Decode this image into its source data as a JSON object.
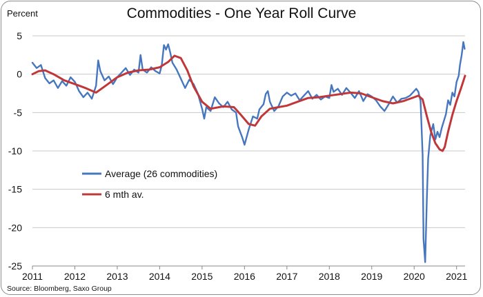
{
  "title": "Commodities - One Year Roll Curve",
  "source": "Source: Bloomberg, Saxo Group",
  "colors": {
    "average": "#4677be",
    "six_month": "#c0373a",
    "grid": "#c9c9c9",
    "axis": "#888888"
  },
  "chart_data": {
    "type": "line",
    "title": "Commodities - One Year Roll Curve",
    "ylabel": "Percent",
    "xlabel": "",
    "xlim": [
      2011.0,
      2021.2
    ],
    "ylim": [
      -25,
      5
    ],
    "x_ticks": [
      "2011",
      "2012",
      "2013",
      "2014",
      "2015",
      "2016",
      "2017",
      "2018",
      "2019",
      "2020",
      "2021"
    ],
    "y_ticks": [
      5,
      0,
      -5,
      -10,
      -15,
      -20,
      -25
    ],
    "grid": "horizontal",
    "legend_position": "middle-left",
    "series": [
      {
        "name": "Average (26 commodities)",
        "color": "#4677be",
        "points": [
          [
            2011.0,
            1.5
          ],
          [
            2011.1,
            0.8
          ],
          [
            2011.2,
            1.2
          ],
          [
            2011.3,
            -0.5
          ],
          [
            2011.4,
            -1.2
          ],
          [
            2011.5,
            -0.8
          ],
          [
            2011.6,
            -1.8
          ],
          [
            2011.7,
            -0.9
          ],
          [
            2011.8,
            -1.5
          ],
          [
            2011.9,
            -0.4
          ],
          [
            2012.0,
            -1.0
          ],
          [
            2012.1,
            -2.2
          ],
          [
            2012.2,
            -3.0
          ],
          [
            2012.3,
            -2.4
          ],
          [
            2012.4,
            -3.2
          ],
          [
            2012.5,
            -1.5
          ],
          [
            2012.55,
            1.8
          ],
          [
            2012.6,
            0.4
          ],
          [
            2012.7,
            -0.8
          ],
          [
            2012.8,
            -0.3
          ],
          [
            2012.9,
            -1.3
          ],
          [
            2013.0,
            -0.4
          ],
          [
            2013.1,
            0.2
          ],
          [
            2013.2,
            0.8
          ],
          [
            2013.3,
            -0.1
          ],
          [
            2013.4,
            0.6
          ],
          [
            2013.5,
            0.2
          ],
          [
            2013.55,
            2.5
          ],
          [
            2013.6,
            0.6
          ],
          [
            2013.7,
            0.2
          ],
          [
            2013.8,
            0.9
          ],
          [
            2013.9,
            0.4
          ],
          [
            2014.0,
            0.1
          ],
          [
            2014.05,
            1.2
          ],
          [
            2014.1,
            3.8
          ],
          [
            2014.15,
            3.2
          ],
          [
            2014.2,
            3.9
          ],
          [
            2014.25,
            2.8
          ],
          [
            2014.3,
            1.5
          ],
          [
            2014.4,
            0.6
          ],
          [
            2014.5,
            -0.6
          ],
          [
            2014.6,
            -1.8
          ],
          [
            2014.7,
            -0.7
          ],
          [
            2014.8,
            -1.3
          ],
          [
            2014.9,
            -2.5
          ],
          [
            2015.0,
            -4.5
          ],
          [
            2015.05,
            -5.8
          ],
          [
            2015.1,
            -4.3
          ],
          [
            2015.2,
            -4.8
          ],
          [
            2015.3,
            -3.0
          ],
          [
            2015.4,
            -3.8
          ],
          [
            2015.5,
            -4.3
          ],
          [
            2015.6,
            -3.6
          ],
          [
            2015.7,
            -4.6
          ],
          [
            2015.8,
            -5.0
          ],
          [
            2015.85,
            -6.8
          ],
          [
            2015.95,
            -8.3
          ],
          [
            2016.0,
            -9.2
          ],
          [
            2016.1,
            -7.2
          ],
          [
            2016.2,
            -5.5
          ],
          [
            2016.3,
            -5.8
          ],
          [
            2016.35,
            -4.6
          ],
          [
            2016.45,
            -3.9
          ],
          [
            2016.5,
            -2.6
          ],
          [
            2016.55,
            -2.2
          ],
          [
            2016.6,
            -3.6
          ],
          [
            2016.7,
            -4.8
          ],
          [
            2016.8,
            -4.2
          ],
          [
            2016.9,
            -2.9
          ],
          [
            2017.0,
            -2.4
          ],
          [
            2017.1,
            -2.8
          ],
          [
            2017.2,
            -2.5
          ],
          [
            2017.3,
            -3.4
          ],
          [
            2017.4,
            -2.8
          ],
          [
            2017.5,
            -2.2
          ],
          [
            2017.6,
            -3.2
          ],
          [
            2017.7,
            -2.7
          ],
          [
            2017.8,
            -3.3
          ],
          [
            2017.9,
            -2.9
          ],
          [
            2018.0,
            -3.1
          ],
          [
            2018.05,
            -1.4
          ],
          [
            2018.1,
            -2.3
          ],
          [
            2018.2,
            -1.9
          ],
          [
            2018.3,
            -2.7
          ],
          [
            2018.4,
            -1.8
          ],
          [
            2018.5,
            -2.4
          ],
          [
            2018.6,
            -3.1
          ],
          [
            2018.7,
            -2.2
          ],
          [
            2018.8,
            -3.5
          ],
          [
            2018.9,
            -2.6
          ],
          [
            2019.0,
            -2.9
          ],
          [
            2019.1,
            -3.4
          ],
          [
            2019.2,
            -4.2
          ],
          [
            2019.3,
            -4.8
          ],
          [
            2019.4,
            -3.9
          ],
          [
            2019.5,
            -2.9
          ],
          [
            2019.6,
            -3.7
          ],
          [
            2019.7,
            -3.2
          ],
          [
            2019.8,
            -3.1
          ],
          [
            2019.9,
            -2.8
          ],
          [
            2020.0,
            -2.2
          ],
          [
            2020.05,
            -1.9
          ],
          [
            2020.1,
            -2.3
          ],
          [
            2020.15,
            -3.5
          ],
          [
            2020.2,
            -10.5
          ],
          [
            2020.22,
            -21.5
          ],
          [
            2020.26,
            -24.5
          ],
          [
            2020.3,
            -16.0
          ],
          [
            2020.33,
            -11.0
          ],
          [
            2020.38,
            -8.0
          ],
          [
            2020.45,
            -6.5
          ],
          [
            2020.5,
            -8.5
          ],
          [
            2020.55,
            -7.5
          ],
          [
            2020.6,
            -8.2
          ],
          [
            2020.65,
            -7.0
          ],
          [
            2020.75,
            -5.2
          ],
          [
            2020.8,
            -3.4
          ],
          [
            2020.85,
            -4.0
          ],
          [
            2020.9,
            -2.4
          ],
          [
            2020.95,
            -2.9
          ],
          [
            2021.0,
            -1.0
          ],
          [
            2021.05,
            -0.2
          ],
          [
            2021.08,
            1.2
          ],
          [
            2021.12,
            2.5
          ],
          [
            2021.16,
            4.2
          ],
          [
            2021.19,
            3.3
          ]
        ]
      },
      {
        "name": "6 mth av.",
        "color": "#c0373a",
        "points": [
          [
            2011.0,
            0.0
          ],
          [
            2011.15,
            0.4
          ],
          [
            2011.3,
            0.5
          ],
          [
            2011.5,
            0.0
          ],
          [
            2011.75,
            -0.8
          ],
          [
            2012.0,
            -1.3
          ],
          [
            2012.25,
            -1.8
          ],
          [
            2012.5,
            -2.4
          ],
          [
            2012.75,
            -1.4
          ],
          [
            2013.0,
            -0.4
          ],
          [
            2013.25,
            0.2
          ],
          [
            2013.5,
            0.5
          ],
          [
            2013.75,
            0.6
          ],
          [
            2014.0,
            0.9
          ],
          [
            2014.2,
            1.6
          ],
          [
            2014.35,
            2.4
          ],
          [
            2014.5,
            2.1
          ],
          [
            2014.65,
            0.5
          ],
          [
            2014.8,
            -1.6
          ],
          [
            2015.0,
            -3.6
          ],
          [
            2015.2,
            -4.5
          ],
          [
            2015.5,
            -4.2
          ],
          [
            2015.75,
            -4.3
          ],
          [
            2015.9,
            -5.2
          ],
          [
            2016.1,
            -6.5
          ],
          [
            2016.25,
            -6.7
          ],
          [
            2016.4,
            -5.5
          ],
          [
            2016.6,
            -4.5
          ],
          [
            2016.8,
            -4.3
          ],
          [
            2017.0,
            -4.1
          ],
          [
            2017.25,
            -3.6
          ],
          [
            2017.5,
            -3.1
          ],
          [
            2017.75,
            -3.0
          ],
          [
            2018.0,
            -2.8
          ],
          [
            2018.25,
            -2.6
          ],
          [
            2018.5,
            -2.4
          ],
          [
            2018.75,
            -2.5
          ],
          [
            2019.0,
            -3.0
          ],
          [
            2019.25,
            -3.5
          ],
          [
            2019.5,
            -3.8
          ],
          [
            2019.75,
            -3.5
          ],
          [
            2020.0,
            -3.0
          ],
          [
            2020.1,
            -2.8
          ],
          [
            2020.2,
            -3.3
          ],
          [
            2020.3,
            -5.5
          ],
          [
            2020.4,
            -7.5
          ],
          [
            2020.5,
            -9.0
          ],
          [
            2020.6,
            -9.8
          ],
          [
            2020.67,
            -10.0
          ],
          [
            2020.72,
            -9.5
          ],
          [
            2020.8,
            -7.5
          ],
          [
            2020.9,
            -5.3
          ],
          [
            2021.0,
            -3.5
          ],
          [
            2021.1,
            -1.9
          ],
          [
            2021.2,
            -0.2
          ]
        ]
      }
    ]
  }
}
